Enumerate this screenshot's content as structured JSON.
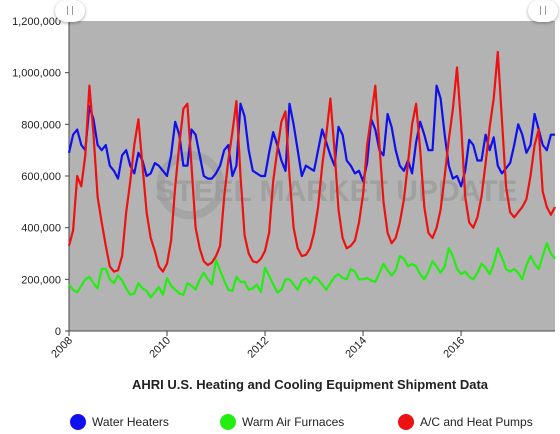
{
  "chart_data": {
    "type": "line",
    "title": "AHRI U.S. Heating and Cooling Equipment Shipment Data",
    "xlabel": "",
    "ylabel": "",
    "ylim": [
      0,
      1200000
    ],
    "yticks": [
      0,
      200000,
      400000,
      600000,
      800000,
      1000000,
      1200000
    ],
    "ytick_labels": [
      "0",
      "200,000",
      "400,000",
      "600,000",
      "800,000",
      "1,000,000",
      "1,200,000"
    ],
    "xticks": [
      "2008",
      "2010",
      "2012",
      "2014",
      "2016"
    ],
    "xrange": [
      "2008-01",
      "2017-12"
    ],
    "grid": false,
    "legend_position": "bottom",
    "watermark": "STEEL MARKET UPDATE",
    "colors": {
      "plot_background": "#b3b3b3"
    },
    "series": [
      {
        "name": "Water Heaters",
        "color": "#1010ee",
        "values": [
          690,
          760,
          780,
          720,
          700,
          870,
          820,
          720,
          700,
          720,
          640,
          620,
          590,
          680,
          700,
          640,
          610,
          690,
          660,
          600,
          610,
          650,
          640,
          620,
          600,
          680,
          810,
          760,
          640,
          640,
          780,
          760,
          680,
          600,
          590,
          590,
          610,
          640,
          700,
          720,
          600,
          640,
          880,
          830,
          700,
          620,
          610,
          600,
          600,
          690,
          770,
          720,
          660,
          620,
          880,
          800,
          700,
          600,
          640,
          630,
          620,
          700,
          780,
          730,
          680,
          640,
          790,
          760,
          660,
          640,
          610,
          620,
          580,
          650,
          820,
          780,
          700,
          680,
          840,
          790,
          700,
          640,
          620,
          660,
          610,
          730,
          810,
          760,
          700,
          700,
          950,
          900,
          760,
          640,
          590,
          600,
          560,
          620,
          740,
          720,
          660,
          660,
          760,
          700,
          750,
          640,
          610,
          630,
          650,
          720,
          800,
          760,
          690,
          720,
          840,
          780,
          720,
          700,
          760,
          760
        ]
      },
      {
        "name": "Warm Air Furnaces",
        "color": "#22ee11",
        "values": [
          180,
          160,
          150,
          175,
          200,
          210,
          185,
          165,
          240,
          240,
          200,
          185,
          215,
          195,
          165,
          140,
          145,
          185,
          165,
          155,
          130,
          150,
          170,
          140,
          205,
          175,
          160,
          145,
          140,
          185,
          175,
          160,
          200,
          225,
          200,
          180,
          275,
          235,
          195,
          160,
          155,
          210,
          190,
          190,
          160,
          165,
          180,
          150,
          245,
          215,
          180,
          150,
          160,
          200,
          200,
          180,
          160,
          195,
          205,
          185,
          210,
          200,
          180,
          160,
          185,
          210,
          220,
          205,
          200,
          240,
          230,
          200,
          200,
          205,
          195,
          190,
          225,
          260,
          235,
          215,
          235,
          290,
          280,
          250,
          260,
          250,
          220,
          200,
          230,
          270,
          250,
          225,
          250,
          320,
          290,
          240,
          220,
          230,
          210,
          200,
          225,
          260,
          245,
          220,
          260,
          320,
          285,
          240,
          230,
          240,
          225,
          200,
          255,
          290,
          260,
          240,
          290,
          340,
          300,
          280
        ]
      },
      {
        "name": "A/C and Heat Pumps",
        "color": "#ee1111",
        "values": [
          330,
          390,
          600,
          560,
          680,
          950,
          760,
          520,
          420,
          330,
          250,
          230,
          235,
          290,
          460,
          580,
          720,
          820,
          640,
          460,
          360,
          310,
          250,
          230,
          260,
          350,
          560,
          720,
          860,
          880,
          640,
          400,
          320,
          270,
          255,
          265,
          290,
          330,
          520,
          660,
          770,
          890,
          600,
          370,
          300,
          270,
          265,
          280,
          310,
          380,
          580,
          700,
          810,
          850,
          600,
          400,
          320,
          290,
          295,
          320,
          380,
          480,
          640,
          760,
          900,
          700,
          470,
          360,
          320,
          330,
          350,
          420,
          530,
          720,
          830,
          950,
          720,
          500,
          380,
          340,
          360,
          420,
          510,
          650,
          800,
          880,
          700,
          480,
          380,
          360,
          400,
          470,
          600,
          740,
          860,
          1020,
          800,
          520,
          420,
          400,
          440,
          520,
          650,
          790,
          900,
          1080,
          820,
          560,
          460,
          440,
          460,
          480,
          510,
          600,
          720,
          780,
          540,
          480,
          450,
          480
        ]
      }
    ],
    "value_scale": 1000
  }
}
